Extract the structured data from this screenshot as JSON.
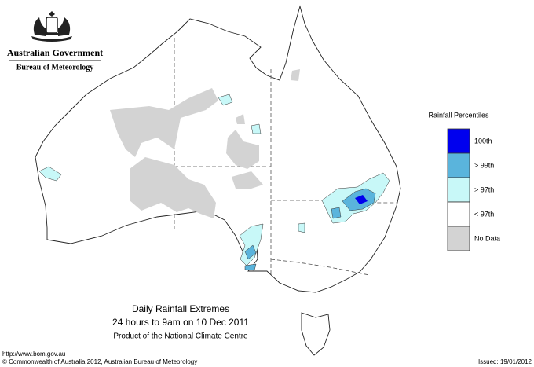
{
  "header": {
    "title": "Australian Government",
    "subtitle": "Bureau of Meteorology"
  },
  "legend": {
    "title": "Rainfall Percentiles",
    "items": [
      {
        "label": "100th",
        "color": "#0000ee"
      },
      {
        "label": "> 99th",
        "color": "#5ab4dc"
      },
      {
        "label": "> 97th",
        "color": "#c8f8f8"
      },
      {
        "label": "< 97th",
        "color": "#ffffff"
      },
      {
        "label": "No Data",
        "color": "#d3d3d3"
      }
    ]
  },
  "caption": {
    "title": "Daily Rainfall Extremes",
    "period": "24 hours to 9am on 10 Dec 2011",
    "product": "Product of the National Climate Centre"
  },
  "footer": {
    "url": "http://www.bom.gov.au",
    "copyright": "© Commonwealth of Australia 2012, Australian Bureau of Meteorology",
    "issued": "Issued: 19/01/2012"
  }
}
